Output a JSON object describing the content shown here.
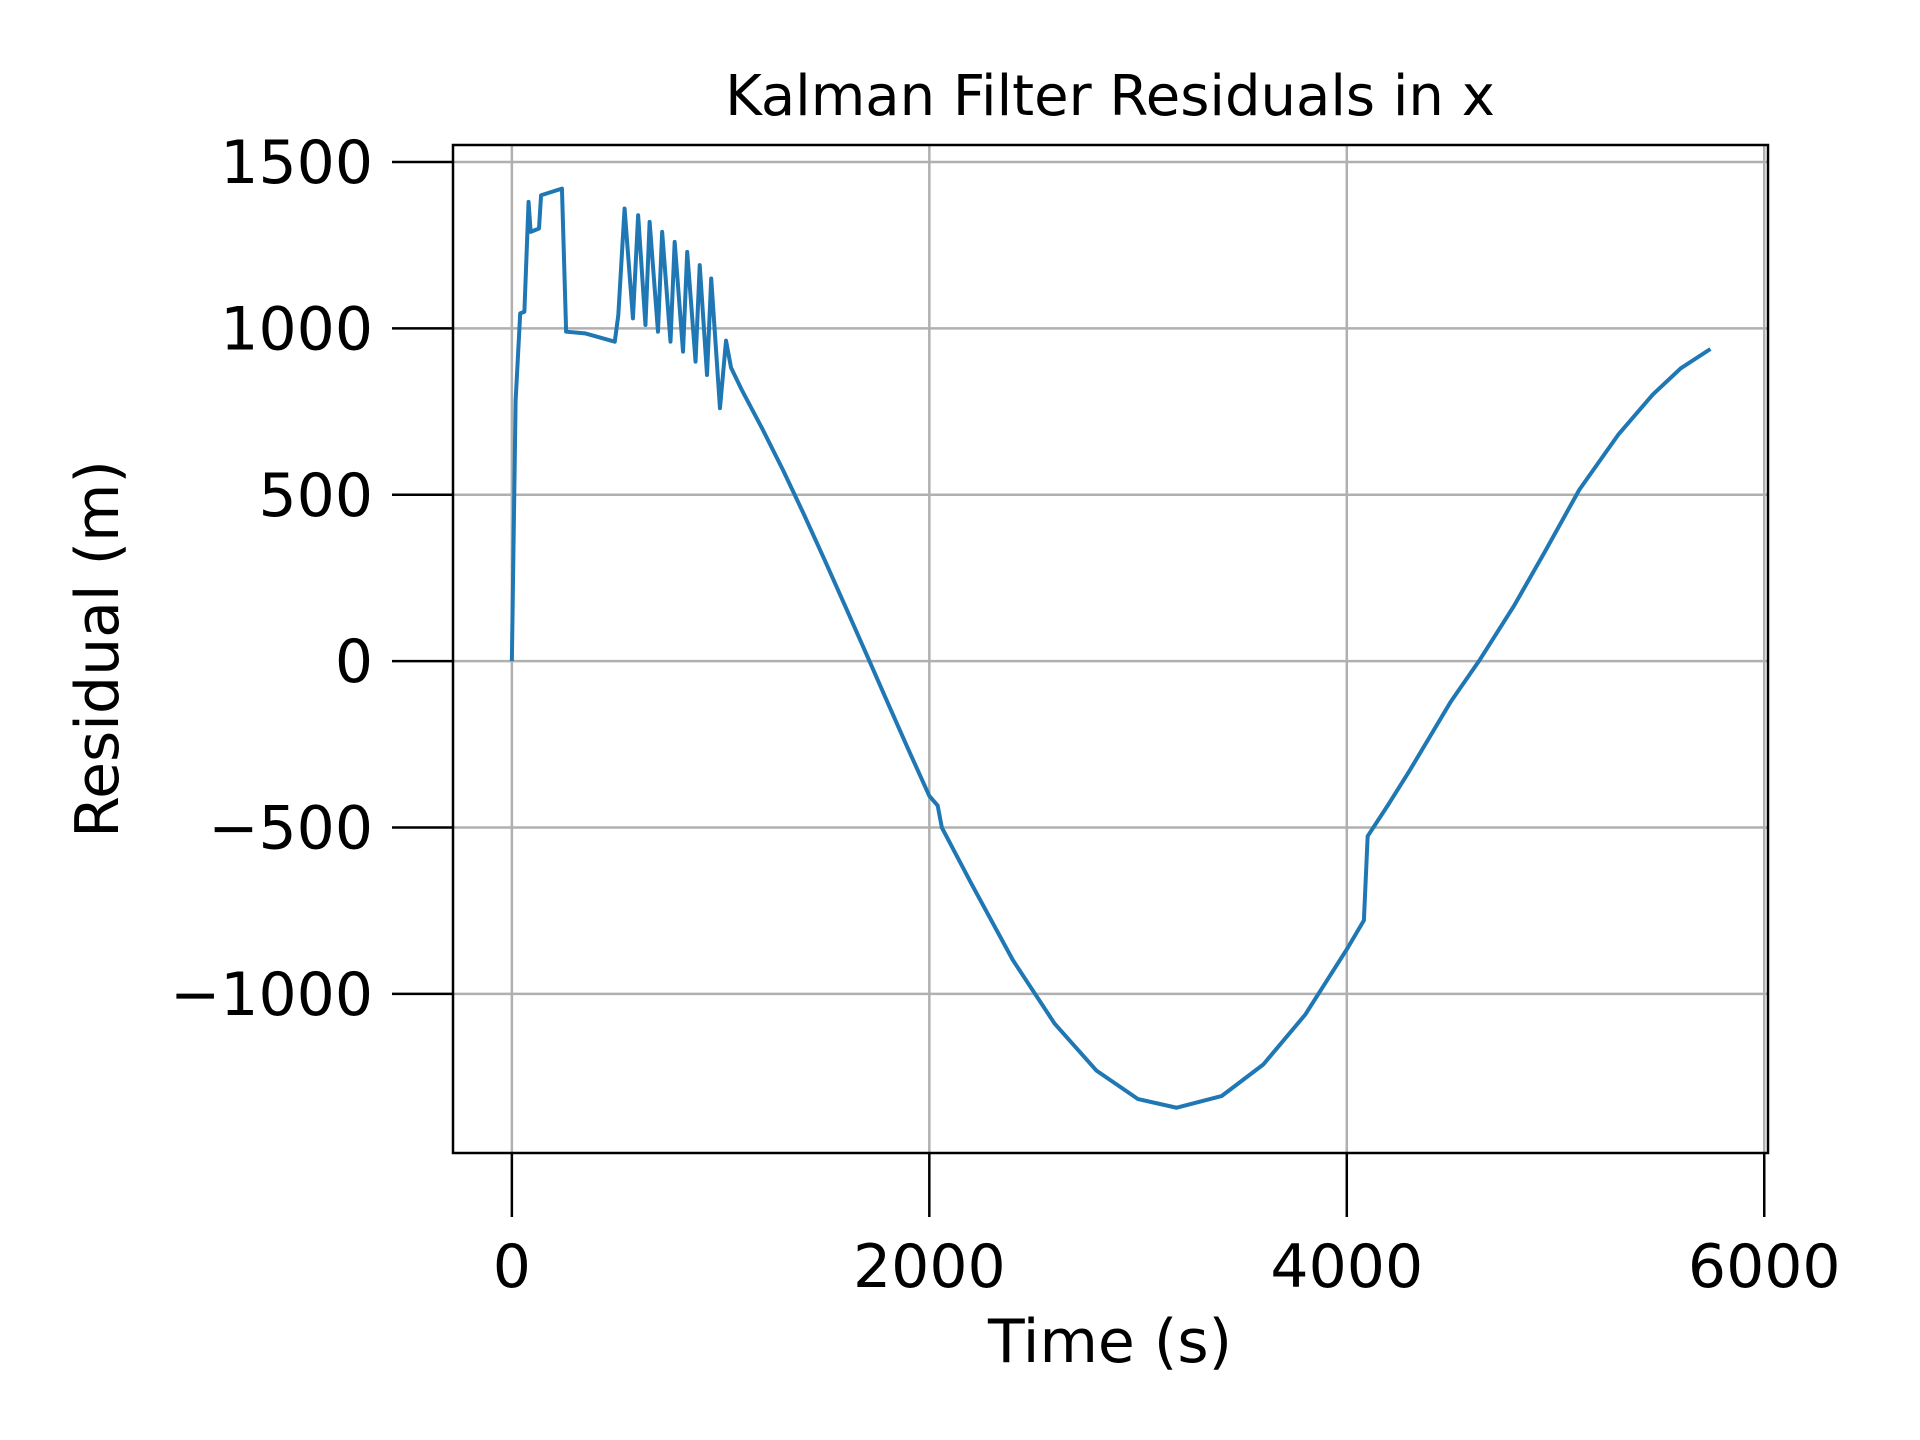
{
  "chart_data": {
    "type": "line",
    "title": "Kalman Filter Residuals in x",
    "xlabel": "Time (s)",
    "ylabel": "Residual (m)",
    "x": [
      0,
      18,
      40,
      60,
      80,
      90,
      130,
      140,
      240,
      260,
      350,
      493,
      510,
      540,
      580,
      605,
      640,
      660,
      700,
      720,
      760,
      780,
      820,
      840,
      880,
      900,
      935,
      955,
      997,
      1026,
      1050,
      1100,
      1200,
      1300,
      1400,
      1500,
      1600,
      1700,
      1800,
      1900,
      2000,
      2040,
      2060,
      2200,
      2400,
      2600,
      2800,
      3000,
      3185,
      3400,
      3600,
      3800,
      4000,
      4082,
      4100,
      4200,
      4300,
      4400,
      4500,
      4633,
      4800,
      4950,
      5114,
      5300,
      5466,
      5600,
      5742
    ],
    "series": [
      {
        "name": "Residual",
        "color": "#1f77b4",
        "values": [
          0,
          783,
          1045,
          1050,
          1380,
          1290,
          1300,
          1400,
          1420,
          990,
          985,
          960,
          1040,
          1360,
          1030,
          1340,
          1010,
          1320,
          990,
          1290,
          960,
          1260,
          930,
          1230,
          900,
          1190,
          860,
          1150,
          760,
          963,
          882,
          817,
          698,
          573,
          440,
          302,
          161,
          19,
          -124,
          -266,
          -405,
          -434,
          -500,
          -667,
          -898,
          -1089,
          -1230,
          -1316,
          -1342,
          -1307,
          -1212,
          -1063,
          -866,
          -779,
          -526,
          -430,
          -330,
          -225,
          -120,
          0,
          165,
          330,
          515,
          680,
          801,
          880,
          938
        ]
      }
    ],
    "xlim": [
      -282,
      6018
    ],
    "ylim": [
      -1478,
      1551
    ],
    "xticks": [
      0,
      2000,
      4000,
      6000
    ],
    "yticks": [
      {
        "value": -1000,
        "label": "−1000"
      },
      {
        "value": -500,
        "label": "−500"
      },
      0,
      500,
      1000,
      1500
    ],
    "grid": true
  }
}
